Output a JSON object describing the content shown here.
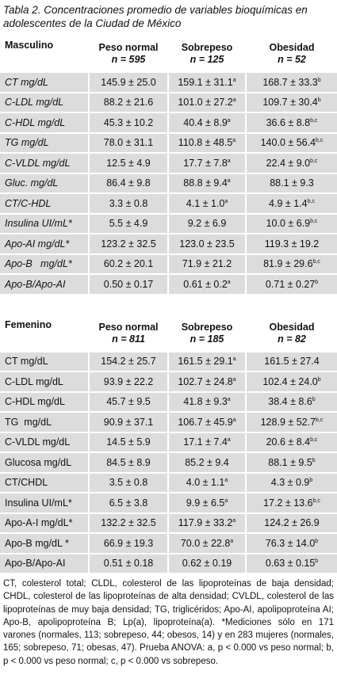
{
  "title": "Tabla 2. Concentraciones promedio de variables bioquímicas en adolescentes de la Ciudad de México",
  "tables": [
    {
      "group": "Masculino",
      "columns": [
        {
          "name": "Peso normal",
          "n": "n = 595"
        },
        {
          "name": "Sobrepeso",
          "n": "n = 125"
        },
        {
          "name": "Obesidad",
          "n": "n = 52"
        }
      ],
      "rows": [
        {
          "label": "CT mg/dL",
          "cells": [
            {
              "text": "145.9 ± 25.0"
            },
            {
              "text": "159.1 ± 31.1",
              "sup": "a"
            },
            {
              "text": "168.7 ± 33.3",
              "sup": "b"
            }
          ]
        },
        {
          "label": "C-LDL mg/dL",
          "cells": [
            {
              "text": "88.2 ± 21.6"
            },
            {
              "text": "101.0 ± 27.2",
              "sup": "a"
            },
            {
              "text": "109.7 ± 30.4",
              "sup": "b"
            }
          ]
        },
        {
          "label": "C-HDL mg/dL",
          "cells": [
            {
              "text": "45.3 ± 10.2"
            },
            {
              "text": "40.4 ± 8.9",
              "sup": "a"
            },
            {
              "text": "36.6 ± 8.8",
              "sup": "b,c"
            }
          ]
        },
        {
          "label": "TG mg/dL",
          "cells": [
            {
              "text": "78.0 ± 31.1"
            },
            {
              "text": "110.8 ± 48.5",
              "sup": "a"
            },
            {
              "text": "140.0 ± 56.4",
              "sup": "b,c"
            }
          ]
        },
        {
          "label": "C-VLDL mg/dL",
          "cells": [
            {
              "text": "12.5 ± 4.9"
            },
            {
              "text": "17.7 ± 7.8",
              "sup": "a"
            },
            {
              "text": "22.4 ± 9.0",
              "sup": "b,c"
            }
          ]
        },
        {
          "label": "Gluc. mg/dL",
          "cells": [
            {
              "text": "86.4 ± 9.8"
            },
            {
              "text": "88.8 ± 9.4",
              "sup": "a"
            },
            {
              "text": "88.1 ± 9.3"
            }
          ]
        },
        {
          "label": "CT/C-HDL",
          "cells": [
            {
              "text": "3.3 ± 0.8"
            },
            {
              "text": "4.1 ± 1.0",
              "sup": "a"
            },
            {
              "text": "4.9 ± 1.4",
              "sup": "b,c"
            }
          ]
        },
        {
          "label": "Insulina UI/mL*",
          "cells": [
            {
              "text": "5.5 ± 4.9"
            },
            {
              "text": "9.2 ± 6.9"
            },
            {
              "text": "10.0 ± 6.9",
              "sup": "b,c"
            }
          ]
        },
        {
          "label": "Apo-AI mg/dL*",
          "cells": [
            {
              "text": "123.2 ± 32.5"
            },
            {
              "text": "123.0 ± 23.5"
            },
            {
              "text": "119.3 ± 19.2"
            }
          ]
        },
        {
          "label": "Apo-B   mg/dL*",
          "cells": [
            {
              "text": "60.2 ± 20.1"
            },
            {
              "text": "71.9 ± 21.2"
            },
            {
              "text": "81.9 ± 29.6",
              "sup": "b,c"
            }
          ]
        },
        {
          "label": "Apo-B/Apo-AI",
          "cells": [
            {
              "text": "0.50 ± 0.17"
            },
            {
              "text": "0.61 ± 0.2",
              "sup": "a"
            },
            {
              "text": "0.71 ± 0.27",
              "sup": "b"
            }
          ]
        }
      ]
    },
    {
      "group": "Femenino",
      "columns": [
        {
          "name": "Peso normal",
          "n": "n = 811"
        },
        {
          "name": "Sobrepeso",
          "n": "n = 185"
        },
        {
          "name": "Obesidad",
          "n": "n = 82"
        }
      ],
      "rows": [
        {
          "label": "CT mg/dL",
          "cells": [
            {
              "text": "154.2 ± 25.7"
            },
            {
              "text": "161.5 ± 29.1",
              "sup": "a"
            },
            {
              "text": "161.5 ± 27.4"
            }
          ]
        },
        {
          "label": "C-LDL mg/dL",
          "cells": [
            {
              "text": "93.9 ± 22.2"
            },
            {
              "text": "102.7 ± 24.8",
              "sup": "a"
            },
            {
              "text": "102.4 ± 24.0",
              "sup": "b"
            }
          ]
        },
        {
          "label": "C-HDL mg/dL",
          "cells": [
            {
              "text": "45.7 ± 9.5"
            },
            {
              "text": "41.8 ± 9.3",
              "sup": "a"
            },
            {
              "text": "38.4 ± 8.6",
              "sup": "b"
            }
          ]
        },
        {
          "label": "TG  mg/dL",
          "cells": [
            {
              "text": "90.9 ± 37.1"
            },
            {
              "text": "106.7 ± 45.9",
              "sup": "a"
            },
            {
              "text": "128.9 ± 52.7",
              "sup": "b,c"
            }
          ]
        },
        {
          "label": "C-VLDL mg/dL",
          "cells": [
            {
              "text": "14.5 ± 5.9"
            },
            {
              "text": "17.1 ± 7.4",
              "sup": "a"
            },
            {
              "text": "20.6 ± 8.4",
              "sup": "b,c"
            }
          ]
        },
        {
          "label": "Glucosa mg/dL",
          "cells": [
            {
              "text": "84.5 ± 8.9"
            },
            {
              "text": "85.2 ± 9.4"
            },
            {
              "text": "88.1 ± 9.5",
              "sup": "b"
            }
          ]
        },
        {
          "label": "CT/CHDL",
          "cells": [
            {
              "text": "3.5 ± 0.8"
            },
            {
              "text": "4.0 ± 1.1",
              "sup": "a"
            },
            {
              "text": "4.3 ± 0.9",
              "sup": "b"
            }
          ]
        },
        {
          "label": "Insulina UI/mL*",
          "cells": [
            {
              "text": "6.5 ± 3.8"
            },
            {
              "text": "9.9 ± 6.5",
              "sup": "a"
            },
            {
              "text": "17.2 ± 13.6",
              "sup": "b,c"
            }
          ]
        },
        {
          "label": "Apo-A-I mg/dL*",
          "cells": [
            {
              "text": "132.2 ± 32.5"
            },
            {
              "text": "117.9 ± 33.2",
              "sup": "a"
            },
            {
              "text": "124.2 ± 26.9"
            }
          ]
        },
        {
          "label": "Apo-B mg/dL *",
          "cells": [
            {
              "text": "66.9 ± 19.3"
            },
            {
              "text": "70.0 ± 22.8",
              "sup": "a"
            },
            {
              "text": "76.3 ± 14.0",
              "sup": "b"
            }
          ]
        },
        {
          "label": "Apo-B/Apo-AI",
          "cells": [
            {
              "text": "0.51 ± 0.18"
            },
            {
              "text": "0.62 ± 0.19"
            },
            {
              "text": "0.63 ± 0.15",
              "sup": "b"
            }
          ]
        }
      ]
    }
  ],
  "footnote": "CT, colesterol total; CLDL, colesterol de las lipoproteínas de baja densidad; CHDL, colesterol de las lipoproteínas de alta densidad; CVLDL, colesterol de las lipoproteínas de muy baja densidad; TG, triglicéridos; Apo-AI, apolipoproteína AI; Apo-B, apolipoproteína B; Lp(a), lipoproteína(a). *Mediciones sólo en 171 varones (normales, 113; sobrepeso, 44; obesos, 14) y en 283 mujeres (normales, 165; sobrepeso, 71; obesas, 47). Prueba ANOVA: a, p < 0.000 vs peso normal; b, p < 0.000 vs peso normal; c, p < 0.000 vs sobrepeso."
}
